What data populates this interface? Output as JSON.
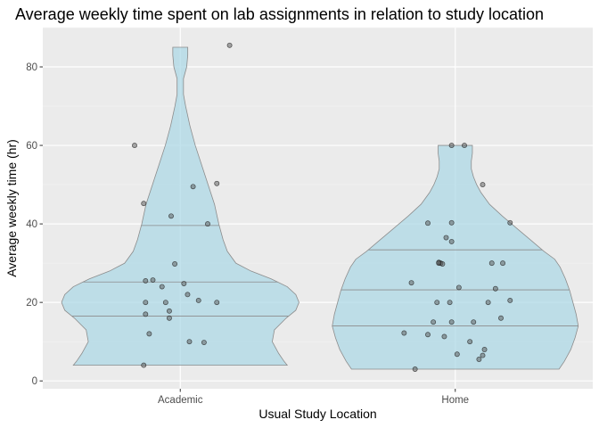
{
  "chart_data": {
    "type": "violin",
    "title": "Average weekly time spent on lab assignments in relation to study location",
    "xlabel": "Usual Study Location",
    "ylabel": "Average weekly time (hr)",
    "categories": [
      "Academic",
      "Home"
    ],
    "ylim": [
      -2,
      90
    ],
    "yticks": [
      0,
      20,
      40,
      60,
      80
    ],
    "grid": true,
    "quantiles_drawn": [
      0.25,
      0.5,
      0.75
    ],
    "violin_fill": "#add8e6",
    "violin_stroke": "#8c8c8c",
    "point_color": "#555555",
    "background": "#ebebeb",
    "violins": [
      {
        "category": "Academic",
        "quantiles": [
          16.5,
          25.2,
          39.6
        ],
        "min": 4,
        "max": 85,
        "profile": [
          [
            4,
            1.0
          ],
          [
            5,
            0.97
          ],
          [
            7,
            0.92
          ],
          [
            10,
            0.86
          ],
          [
            13,
            0.88
          ],
          [
            16,
            0.99
          ],
          [
            18,
            1.08
          ],
          [
            20,
            1.11
          ],
          [
            22,
            1.08
          ],
          [
            24,
            1.0
          ],
          [
            26,
            0.85
          ],
          [
            28,
            0.66
          ],
          [
            30,
            0.52
          ],
          [
            33,
            0.44
          ],
          [
            36,
            0.4
          ],
          [
            40,
            0.36
          ],
          [
            45,
            0.32
          ],
          [
            50,
            0.26
          ],
          [
            55,
            0.2
          ],
          [
            60,
            0.14
          ],
          [
            65,
            0.09
          ],
          [
            70,
            0.05
          ],
          [
            73,
            0.03
          ],
          [
            77,
            0.03
          ],
          [
            80,
            0.06
          ],
          [
            83,
            0.07
          ],
          [
            85,
            0.07
          ]
        ],
        "points": [
          [
            -0.25,
            60
          ],
          [
            0.27,
            85.5
          ],
          [
            -0.2,
            45.2
          ],
          [
            0.07,
            49.5
          ],
          [
            -0.05,
            42
          ],
          [
            0.15,
            40
          ],
          [
            0.2,
            50.3
          ],
          [
            -0.03,
            29.8
          ],
          [
            -0.19,
            25.5
          ],
          [
            -0.15,
            25.7
          ],
          [
            -0.1,
            24
          ],
          [
            0.02,
            24.8
          ],
          [
            -0.19,
            20
          ],
          [
            -0.08,
            20
          ],
          [
            0.1,
            20.5
          ],
          [
            0.2,
            20
          ],
          [
            0.04,
            22
          ],
          [
            -0.06,
            17.8
          ],
          [
            -0.06,
            16
          ],
          [
            -0.19,
            17
          ],
          [
            -0.17,
            12
          ],
          [
            0.05,
            10
          ],
          [
            0.13,
            9.8
          ],
          [
            -0.2,
            4
          ]
        ]
      },
      {
        "category": "Home",
        "quantiles": [
          14,
          23.2,
          33.4
        ],
        "min": 3,
        "max": 60,
        "profile": [
          [
            3,
            0.97
          ],
          [
            5,
            1.02
          ],
          [
            8,
            1.08
          ],
          [
            11,
            1.12
          ],
          [
            14,
            1.15
          ],
          [
            17,
            1.13
          ],
          [
            20,
            1.1
          ],
          [
            23,
            1.07
          ],
          [
            26,
            1.03
          ],
          [
            29,
            0.98
          ],
          [
            31,
            0.93
          ],
          [
            33,
            0.83
          ],
          [
            36,
            0.7
          ],
          [
            39,
            0.57
          ],
          [
            42,
            0.44
          ],
          [
            45,
            0.32
          ],
          [
            48,
            0.24
          ],
          [
            50,
            0.2
          ],
          [
            52,
            0.17
          ],
          [
            54,
            0.15
          ],
          [
            56,
            0.15
          ],
          [
            58,
            0.16
          ],
          [
            60,
            0.16
          ]
        ],
        "points": [
          [
            -0.02,
            60
          ],
          [
            0.05,
            60
          ],
          [
            -0.15,
            40.2
          ],
          [
            -0.02,
            40.3
          ],
          [
            0.15,
            50
          ],
          [
            0.3,
            40.3
          ],
          [
            -0.05,
            36.5
          ],
          [
            -0.02,
            35.5
          ],
          [
            -0.08,
            30
          ],
          [
            -0.09,
            30.2
          ],
          [
            -0.07,
            29.8
          ],
          [
            -0.09,
            30
          ],
          [
            0.2,
            30
          ],
          [
            0.26,
            30
          ],
          [
            -0.24,
            25
          ],
          [
            0.02,
            23.8
          ],
          [
            0.22,
            23.5
          ],
          [
            -0.1,
            20
          ],
          [
            -0.03,
            20
          ],
          [
            0.18,
            20
          ],
          [
            0.3,
            20.5
          ],
          [
            -0.12,
            15
          ],
          [
            -0.02,
            15
          ],
          [
            0.1,
            15
          ],
          [
            0.25,
            16
          ],
          [
            -0.28,
            12.2
          ],
          [
            -0.15,
            11.8
          ],
          [
            -0.06,
            11.3
          ],
          [
            0.08,
            10
          ],
          [
            0.16,
            8
          ],
          [
            0.15,
            6.5
          ],
          [
            0.13,
            5.5
          ],
          [
            0.01,
            6.8
          ],
          [
            -0.22,
            3
          ]
        ]
      }
    ]
  }
}
